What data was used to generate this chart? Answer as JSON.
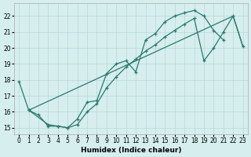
{
  "xlabel": "Humidex (Indice chaleur)",
  "bg_color": "#d6eeee",
  "grid_color": "#b8d8d8",
  "line_color": "#2a7a6a",
  "xlim": [
    -0.5,
    23.5
  ],
  "ylim": [
    14.6,
    22.8
  ],
  "xticks": [
    0,
    1,
    2,
    3,
    4,
    5,
    6,
    7,
    8,
    9,
    10,
    11,
    12,
    13,
    14,
    15,
    16,
    17,
    18,
    19,
    20,
    21,
    22,
    23
  ],
  "yticks": [
    15,
    16,
    17,
    18,
    19,
    20,
    21,
    22
  ],
  "line1_x": [
    0,
    1,
    2,
    3,
    4,
    5,
    6,
    7,
    8,
    9,
    10,
    11,
    12,
    13,
    14,
    15,
    16,
    17,
    18,
    19,
    20,
    21
  ],
  "line1_y": [
    17.9,
    16.1,
    15.8,
    15.1,
    15.1,
    15.0,
    15.55,
    16.6,
    16.7,
    18.4,
    19.0,
    19.2,
    18.5,
    20.5,
    20.9,
    21.65,
    22.0,
    22.2,
    22.35,
    22.0,
    21.1,
    20.5
  ],
  "line2_x": [
    1,
    3,
    4,
    5,
    6,
    7,
    8,
    9,
    10,
    11,
    12,
    13,
    14,
    15,
    16,
    17,
    18,
    19,
    20,
    21,
    22,
    23
  ],
  "line2_y": [
    16.1,
    15.2,
    15.1,
    15.0,
    15.2,
    16.0,
    16.5,
    17.5,
    18.2,
    18.8,
    19.3,
    19.8,
    20.2,
    20.7,
    21.1,
    21.5,
    21.85,
    19.2,
    20.0,
    21.0,
    22.0,
    20.1
  ],
  "line3_x": [
    1,
    22,
    23
  ],
  "line3_y": [
    16.1,
    22.0,
    20.1
  ]
}
